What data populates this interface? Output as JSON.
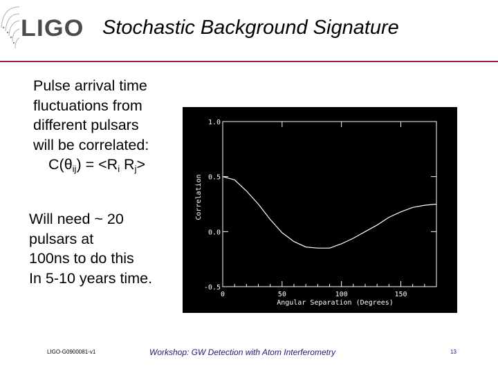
{
  "slide": {
    "logo_text": "LIGO",
    "title": "Stochastic Background Signature",
    "block1": {
      "lines": [
        "Pulse arrival time",
        "fluctuations from",
        "different pulsars",
        "will be correlated:"
      ],
      "formula": {
        "c": "C(",
        "theta": "θ",
        "ij": "ij",
        "eq": ") = <R",
        "i": "i",
        "rj": " R",
        "j": "j",
        "end": ">"
      }
    },
    "block2": {
      "lines": [
        "Will need ~ 20",
        "pulsars at",
        "100ns to do this",
        "In 5-10 years time."
      ]
    },
    "footer": {
      "doc_id": "LIGO-G0900081-v1",
      "event": "Workshop: GW Detection with Atom Interferometry",
      "page": "13"
    }
  },
  "chart_data": {
    "type": "line",
    "title": "",
    "xlabel": "Angular Separation (Degrees)",
    "ylabel": "Correlation",
    "xlim": [
      0,
      180
    ],
    "ylim": [
      -0.5,
      1.0
    ],
    "xticks": [
      {
        "value": 0,
        "label": "0"
      },
      {
        "value": 50,
        "label": "50"
      },
      {
        "value": 100,
        "label": "100"
      },
      {
        "value": 150,
        "label": "150"
      }
    ],
    "yticks": [
      {
        "value": -0.5,
        "label": "-0.5"
      },
      {
        "value": 0.0,
        "label": "0.0"
      },
      {
        "value": 0.5,
        "label": "0.5"
      },
      {
        "value": 1.0,
        "label": "1.0"
      }
    ],
    "grid": false,
    "colors": {
      "background": "#000000",
      "foreground": "#ffffff"
    },
    "series": [
      {
        "x": [
          0,
          10,
          20,
          30,
          40,
          50,
          60,
          70,
          80,
          90,
          100,
          110,
          120,
          130,
          140,
          150,
          160,
          170,
          180
        ],
        "values": [
          0.5,
          0.47,
          0.37,
          0.25,
          0.11,
          -0.01,
          -0.09,
          -0.14,
          -0.15,
          -0.15,
          -0.11,
          -0.06,
          0.0,
          0.06,
          0.13,
          0.18,
          0.22,
          0.24,
          0.25
        ]
      }
    ]
  }
}
